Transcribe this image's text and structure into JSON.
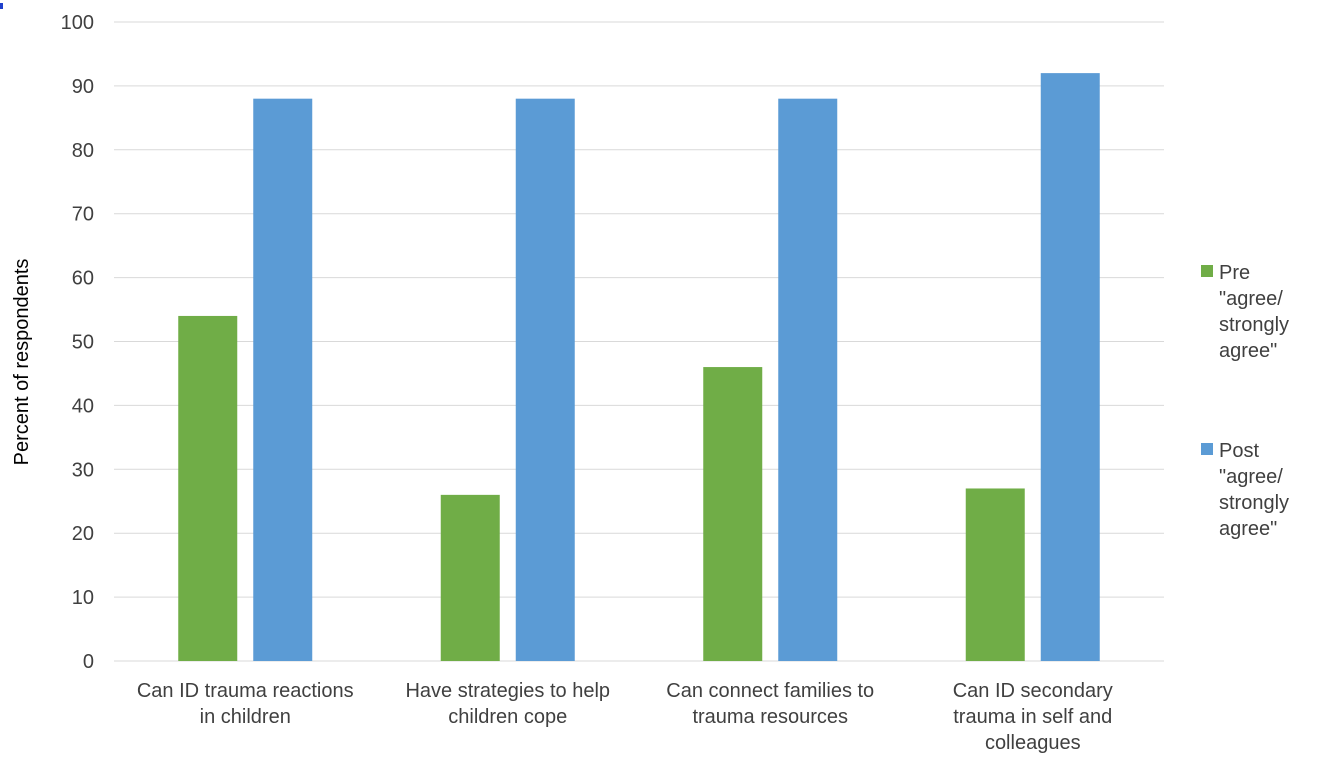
{
  "chart_data": {
    "type": "bar",
    "title": "",
    "xlabel": "",
    "ylabel": "Percent of respondents",
    "ylim": [
      0,
      100
    ],
    "yticks": [
      0,
      10,
      20,
      30,
      40,
      50,
      60,
      70,
      80,
      90,
      100
    ],
    "grid": true,
    "legend_position": "right",
    "categories": [
      [
        "Can ID trauma reactions",
        "in children"
      ],
      [
        "Have strategies to help",
        "children cope"
      ],
      [
        "Can connect families to",
        "trauma resources"
      ],
      [
        "Can ID secondary",
        "trauma in self and",
        "colleagues"
      ]
    ],
    "series": [
      {
        "name": [
          "Pre",
          "\"agree/",
          "strongly",
          "agree\""
        ],
        "color": "#70ad47",
        "values": [
          54,
          26,
          46,
          27
        ]
      },
      {
        "name": [
          "Post",
          "\"agree/",
          "strongly",
          "agree\""
        ],
        "color": "#5b9bd5",
        "values": [
          88,
          88,
          88,
          92
        ]
      }
    ]
  }
}
